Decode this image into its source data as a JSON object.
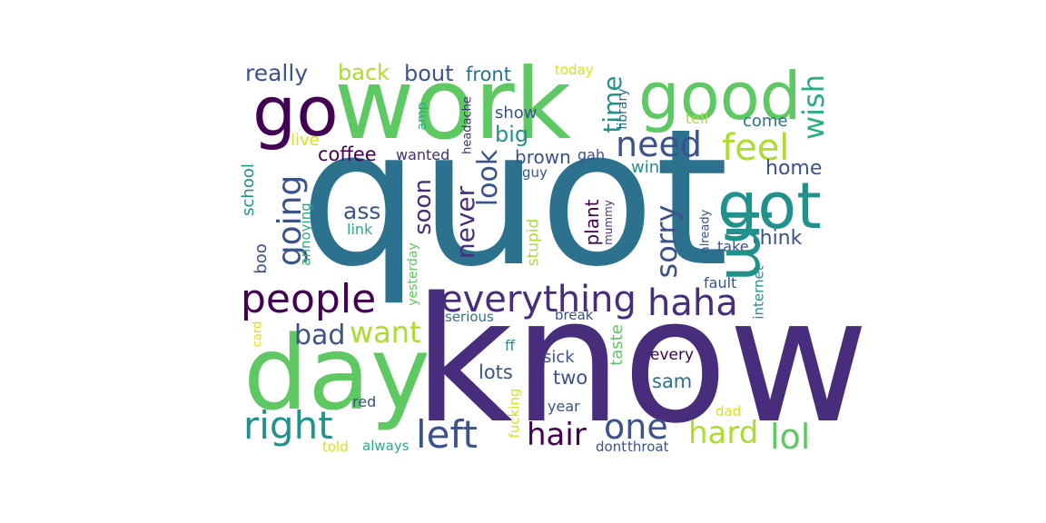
{
  "colors": {
    "dark_purple": "#440154",
    "indigo": "#472d7b",
    "slate_blue": "#3b528b",
    "blue": "#2c728e",
    "teal": "#21918c",
    "sea_green": "#28ae80",
    "green": "#5ec962",
    "lime": "#addc30",
    "yellow": "#d8e219"
  },
  "words": [
    "quot",
    "know",
    "work",
    "day",
    "good",
    "go",
    "got",
    "im",
    "people",
    "everything",
    "haha",
    "right",
    "going",
    "need",
    "feel",
    "left",
    "one",
    "hair",
    "hard",
    "lol",
    "wish",
    "time",
    "sorry",
    "look",
    "never",
    "soon",
    "bad",
    "want",
    "really",
    "back",
    "bout",
    "front",
    "today",
    "home",
    "think",
    "plant",
    "mummy",
    "ass",
    "coffee",
    "wanted",
    "brown",
    "gah",
    "big",
    "show",
    "come",
    "tell",
    "live",
    "headache",
    "amp",
    "library",
    "win",
    "guy",
    "school",
    "boo",
    "annoying",
    "link",
    "yesterday",
    "stupid",
    "already",
    "take",
    "fault",
    "internet",
    "serious",
    "break",
    "card",
    "ff",
    "sick",
    "every",
    "lots",
    "two",
    "sam",
    "taste",
    "red",
    "fucking",
    "year",
    "dad",
    "told",
    "always",
    "dont",
    "throat"
  ]
}
